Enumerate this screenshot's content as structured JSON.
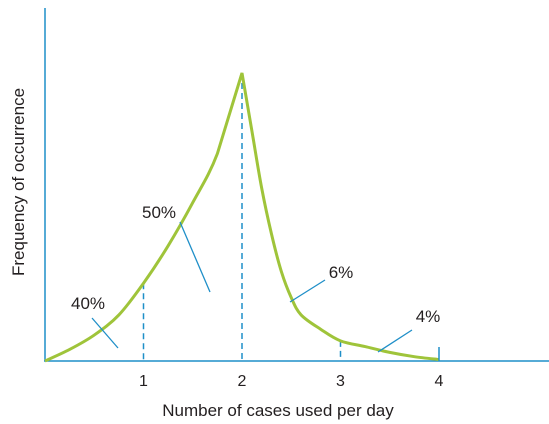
{
  "chart_data": {
    "type": "line",
    "title": "",
    "xlabel": "Number of cases used per day",
    "ylabel": "Frequency of occurrence",
    "xlim": [
      0,
      5
    ],
    "ylim": [
      0,
      1
    ],
    "x_ticks": [
      "1",
      "2",
      "3",
      "4"
    ],
    "y_ticks_shown": false,
    "grid": false,
    "colors": {
      "axis": "#1f8fc8",
      "curve": "#9fc43a",
      "annotation": "#1f8fc8",
      "dashed": "#1f8fc8"
    },
    "curve": {
      "x": [
        0,
        0.25,
        0.5,
        0.75,
        1.0,
        1.25,
        1.5,
        1.75,
        2.0,
        2.1,
        2.2,
        2.3,
        2.4,
        2.5,
        2.6,
        2.8,
        3.0,
        3.25,
        3.5,
        3.75,
        4.0
      ],
      "y": [
        0,
        0.04,
        0.09,
        0.16,
        0.27,
        0.4,
        0.55,
        0.72,
        1.0,
        0.8,
        0.6,
        0.44,
        0.31,
        0.22,
        0.16,
        0.11,
        0.07,
        0.05,
        0.03,
        0.015,
        0.005
      ]
    },
    "dashed_lines_at_x": [
      1,
      2,
      3
    ],
    "regions": [
      {
        "label": "40%",
        "from": 0,
        "to": 1
      },
      {
        "label": "50%",
        "from": 1,
        "to": 2
      },
      {
        "label": "6%",
        "from": 2,
        "to": 3
      },
      {
        "label": "4%",
        "from": 3,
        "to": 4
      }
    ]
  }
}
